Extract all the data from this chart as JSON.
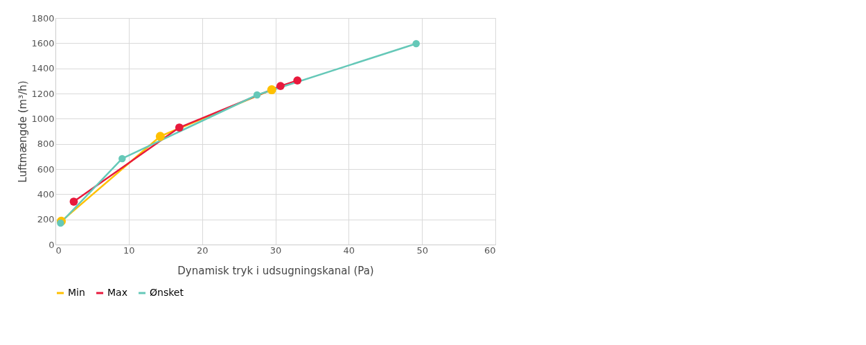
{
  "chart_data": {
    "type": "line",
    "xlabel": "Dynamisk tryk  i udsugningskanal (Pa)",
    "ylabel": "Luftmængde (m³/h)",
    "xlim": [
      0,
      60
    ],
    "xticks": [
      0,
      10,
      20,
      30,
      40,
      50,
      60
    ],
    "ylim": [
      0,
      1800
    ],
    "yticks": [
      0,
      200,
      400,
      600,
      800,
      1000,
      1200,
      1400,
      1600,
      1800
    ],
    "grid": true,
    "legend": "bottom",
    "marker": "circle",
    "line_style": "solid",
    "series": [
      {
        "name": "Min",
        "color": "#ffc000",
        "x": [
          0.8,
          14.3,
          29.5
        ],
        "values": [
          185,
          860,
          1230
        ]
      },
      {
        "name": "Max",
        "color": "#e8193c",
        "x": [
          2.5,
          16.9,
          30.7,
          33.0
        ],
        "values": [
          341,
          930,
          1260,
          1304
        ]
      },
      {
        "name": "Ønsket",
        "color": "#65c8b8",
        "x": [
          0.7,
          9.1,
          27.5,
          49.2
        ],
        "values": [
          171,
          683,
          1189,
          1596
        ]
      }
    ]
  }
}
